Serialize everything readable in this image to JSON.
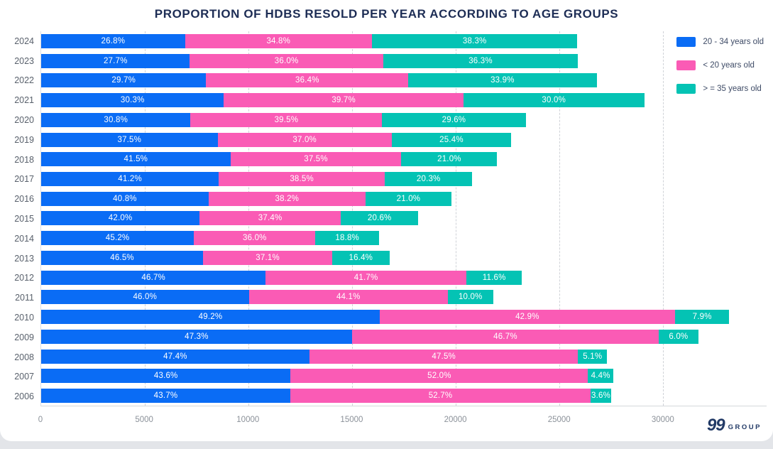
{
  "title": "PROPORTION OF HDBS RESOLD PER YEAR ACCORDING TO AGE GROUPS",
  "logo": {
    "number": "99",
    "word": "GROUP"
  },
  "colors": {
    "series_blue": "#0a6cf5",
    "series_pink": "#fa5bb5",
    "series_teal": "#04c3b4",
    "title_navy": "#1d2d55",
    "background_strip": "#e3e5e9"
  },
  "legend": [
    {
      "label": "20 - 34 years old",
      "color": "#0a6cf5"
    },
    {
      "label": "< 20 years old",
      "color": "#fa5bb5"
    },
    {
      "label": "> = 35 years old",
      "color": "#04c3b4"
    }
  ],
  "chart_data": {
    "type": "bar",
    "orientation": "horizontal",
    "stacked": true,
    "title": "PROPORTION OF HDBS RESOLD PER YEAR ACCORDING TO AGE GROUPS",
    "categories": [
      "2024",
      "2023",
      "2022",
      "2021",
      "2020",
      "2019",
      "2018",
      "2017",
      "2016",
      "2015",
      "2014",
      "2013",
      "2012",
      "2011",
      "2010",
      "2009",
      "2008",
      "2007",
      "2006"
    ],
    "series": [
      {
        "name": "20 - 34 years old",
        "color": "#0a6cf5",
        "pct": [
          26.8,
          27.7,
          29.7,
          30.3,
          30.8,
          37.5,
          41.5,
          41.2,
          40.8,
          42.0,
          45.2,
          46.5,
          46.7,
          46.0,
          49.2,
          47.3,
          47.4,
          43.6,
          43.7
        ]
      },
      {
        "name": "< 20 years old",
        "color": "#fa5bb5",
        "pct": [
          34.8,
          36.0,
          36.4,
          39.7,
          39.5,
          37.0,
          37.5,
          38.5,
          38.2,
          37.4,
          36.0,
          37.1,
          41.7,
          44.1,
          42.9,
          46.7,
          47.5,
          52.0,
          52.7
        ]
      },
      {
        "name": "> = 35 years old",
        "color": "#04c3b4",
        "pct": [
          38.3,
          36.3,
          33.9,
          30.0,
          29.6,
          25.4,
          21.0,
          20.3,
          21.0,
          20.6,
          18.8,
          16.4,
          11.6,
          10.0,
          7.9,
          6.0,
          5.1,
          4.4,
          3.6
        ]
      }
    ],
    "totals_estimated": [
      25900,
      25900,
      26800,
      29100,
      23400,
      22700,
      22000,
      20800,
      19800,
      18200,
      16300,
      16800,
      23200,
      21800,
      33200,
      31700,
      27300,
      27600,
      27500
    ],
    "xlabel": "",
    "ylabel": "",
    "x_axis": {
      "ticks": [
        0,
        5000,
        10000,
        15000,
        20000,
        25000,
        30000
      ],
      "max": 35000,
      "gridlines": "dashed"
    },
    "legend_position": "top-right",
    "value_label_format": "one_decimal_percent_inside_segment"
  }
}
